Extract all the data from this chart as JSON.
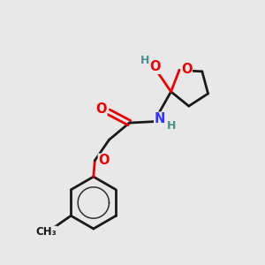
{
  "bg_color": "#e8e8e8",
  "bond_color": "#1a1a1a",
  "oxygen_color": "#ee0000",
  "nitrogen_color": "#3333ff",
  "h_color": "#4a9090",
  "line_width": 2.0,
  "fig_width": 3.0,
  "fig_height": 3.0,
  "dpi": 100,
  "xlim": [
    0,
    10
  ],
  "ylim": [
    0,
    10
  ]
}
